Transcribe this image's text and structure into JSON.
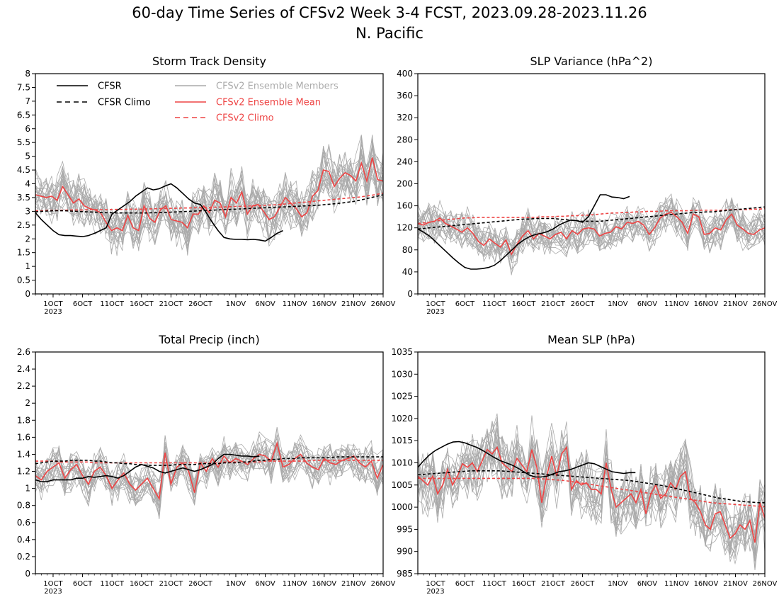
{
  "title_line1": "60-day Time Series of CFSv2 Week 3-4 FCST, 2023.09.28-2023.11.26",
  "title_line2": "N. Pacific",
  "colors": {
    "cfsr": "#000000",
    "members": "#aaaaaa",
    "ensemble_mean": "#ee4444"
  },
  "legend": [
    {
      "label": "CFSR",
      "color": "#000000",
      "style": "solid"
    },
    {
      "label": "CFSR Climo",
      "color": "#000000",
      "style": "dashed"
    },
    {
      "label": "CFSv2 Ensemble Members",
      "color": "#aaaaaa",
      "style": "solid"
    },
    {
      "label": "CFSv2 Ensemble Mean",
      "color": "#ee4444",
      "style": "solid"
    },
    {
      "label": "CFSv2 Climo",
      "color": "#ee4444",
      "style": "dashed"
    }
  ],
  "chart_data": [
    {
      "type": "line",
      "title": "Storm Track Density",
      "x_start": "2023-09-28",
      "x_end": "2023-11-26",
      "x_tick_labels": [
        "1OCT",
        "6OCT",
        "11OCT",
        "16OCT",
        "21OCT",
        "26OCT",
        "1NOV",
        "6NOV",
        "11NOV",
        "16NOV",
        "21NOV",
        "26NOV"
      ],
      "x_year_label": "2023",
      "ylim": [
        0,
        8
      ],
      "yticks": [
        "0",
        "0.5",
        "1",
        "1.5",
        "2",
        "2.5",
        "3",
        "3.5",
        "4",
        "4.5",
        "5",
        "5.5",
        "6",
        "6.5",
        "7",
        "7.5",
        "8"
      ],
      "cfsr": [
        2.95,
        2.7,
        2.5,
        2.3,
        2.15,
        2.12,
        2.12,
        2.1,
        2.08,
        2.12,
        2.2,
        2.3,
        2.4,
        2.9,
        3.05,
        3.2,
        3.35,
        3.55,
        3.7,
        3.85,
        3.78,
        3.82,
        3.92,
        4.0,
        3.85,
        3.65,
        3.45,
        3.3,
        3.25,
        2.95,
        2.6,
        2.3,
        2.05,
        2.0,
        1.98,
        1.98,
        1.97,
        1.98,
        1.96,
        1.92,
        2.05,
        2.2,
        2.3
      ],
      "cfsr_climo": [
        2.98,
        3.0,
        3.01,
        3.02,
        3.02,
        3.02,
        3.01,
        3.0,
        2.99,
        2.98,
        2.97,
        2.96,
        2.95,
        2.95,
        2.94,
        2.94,
        2.94,
        2.94,
        2.94,
        2.94,
        2.95,
        2.95,
        2.96,
        2.97,
        2.98,
        2.99,
        3.0,
        3.01,
        3.02,
        3.03,
        3.04,
        3.05,
        3.06,
        3.07,
        3.08,
        3.09,
        3.1,
        3.11,
        3.12,
        3.13,
        3.14,
        3.15,
        3.16,
        3.17,
        3.18,
        3.19,
        3.2,
        3.21,
        3.22,
        3.24,
        3.26,
        3.28,
        3.3,
        3.33,
        3.36,
        3.4,
        3.45,
        3.5,
        3.55,
        3.6
      ],
      "ens_mean": [
        3.6,
        3.55,
        3.5,
        3.55,
        3.4,
        3.9,
        3.6,
        3.3,
        3.45,
        3.2,
        3.1,
        3.05,
        2.95,
        2.6,
        2.3,
        2.4,
        2.3,
        2.85,
        2.4,
        2.3,
        3.2,
        2.75,
        2.6,
        3.05,
        3.2,
        2.7,
        2.65,
        2.6,
        2.4,
        2.9,
        2.9,
        3.2,
        2.95,
        3.4,
        3.3,
        2.8,
        3.5,
        3.3,
        3.7,
        2.9,
        3.2,
        3.25,
        3.0,
        2.7,
        2.8,
        3.15,
        3.5,
        3.3,
        3.1,
        2.8,
        2.95,
        3.55,
        3.75,
        4.5,
        4.45,
        3.9,
        4.2,
        4.4,
        4.3,
        4.1,
        4.75,
        4.1,
        4.95,
        4.15,
        4.1
      ],
      "cfsv2_climo": [
        3.02,
        3.02,
        3.03,
        3.03,
        3.04,
        3.04,
        3.05,
        3.05,
        3.05,
        3.06,
        3.06,
        3.06,
        3.06,
        3.07,
        3.07,
        3.07,
        3.08,
        3.08,
        3.08,
        3.09,
        3.09,
        3.1,
        3.1,
        3.11,
        3.11,
        3.12,
        3.12,
        3.13,
        3.13,
        3.14,
        3.15,
        3.15,
        3.16,
        3.17,
        3.18,
        3.18,
        3.19,
        3.2,
        3.21,
        3.22,
        3.23,
        3.24,
        3.26,
        3.28,
        3.3,
        3.32,
        3.34,
        3.36,
        3.38,
        3.4,
        3.42,
        3.44,
        3.46,
        3.48,
        3.5,
        3.52,
        3.55,
        3.58,
        3.62,
        3.66
      ],
      "members_base": 3.2,
      "members_spread": 0.8
    },
    {
      "type": "line",
      "title": "SLP Variance (hPa^2)",
      "x_start": "2023-09-28",
      "x_end": "2023-11-26",
      "x_tick_labels": [
        "1OCT",
        "6OCT",
        "11OCT",
        "16OCT",
        "21OCT",
        "26OCT",
        "1NOV",
        "6NOV",
        "11NOV",
        "16NOV",
        "21NOV",
        "26NOV"
      ],
      "x_year_label": "2023",
      "ylim": [
        0,
        400
      ],
      "yticks": [
        "0",
        "40",
        "80",
        "120",
        "160",
        "200",
        "240",
        "280",
        "320",
        "360",
        "400"
      ],
      "cfsr": [
        118,
        112,
        105,
        95,
        85,
        75,
        65,
        56,
        48,
        45,
        45,
        46,
        48,
        52,
        60,
        70,
        80,
        90,
        98,
        104,
        108,
        110,
        113,
        118,
        125,
        130,
        134,
        133,
        130,
        140,
        160,
        180,
        180,
        176,
        175,
        173,
        177
      ],
      "cfsr_climo": [
        118,
        119,
        120,
        121,
        122,
        123,
        124,
        125,
        126,
        127,
        128,
        129,
        130,
        131,
        132,
        133,
        134,
        135,
        136,
        136,
        137,
        137,
        137,
        137,
        136,
        135,
        134,
        133,
        132,
        132,
        132,
        132,
        133,
        134,
        135,
        136,
        137,
        138,
        139,
        140,
        141,
        142,
        143,
        144,
        145,
        146,
        147,
        148,
        148,
        149,
        149,
        150,
        151,
        152,
        153,
        154,
        155,
        156,
        157,
        158
      ],
      "ens_mean": [
        128,
        125,
        130,
        132,
        138,
        128,
        123,
        118,
        112,
        120,
        110,
        95,
        88,
        100,
        92,
        85,
        98,
        72,
        90,
        105,
        115,
        100,
        110,
        105,
        100,
        108,
        112,
        100,
        115,
        108,
        118,
        120,
        118,
        105,
        110,
        112,
        122,
        118,
        130,
        128,
        132,
        125,
        108,
        120,
        138,
        145,
        148,
        140,
        130,
        110,
        145,
        140,
        108,
        110,
        120,
        116,
        135,
        145,
        125,
        118,
        110,
        108,
        116,
        120
      ],
      "cfsv2_climo": [
        128,
        129,
        130,
        132,
        134,
        135,
        136,
        137,
        138,
        138,
        139,
        139,
        139,
        139,
        139,
        139,
        139,
        139,
        139,
        139,
        139,
        140,
        140,
        140,
        141,
        141,
        142,
        142,
        143,
        143,
        144,
        145,
        146,
        147,
        147,
        148,
        148,
        149,
        149,
        150,
        150,
        150,
        151,
        151,
        151,
        151,
        151,
        152,
        152,
        152,
        152,
        152,
        152,
        153,
        153,
        153,
        153,
        154,
        154,
        155
      ],
      "members_base": 128,
      "members_spread": 30
    },
    {
      "type": "line",
      "title": "Total Precip (inch)",
      "x_start": "2023-09-28",
      "x_end": "2023-11-26",
      "x_tick_labels": [
        "1OCT",
        "6OCT",
        "11OCT",
        "16OCT",
        "21OCT",
        "26OCT",
        "1NOV",
        "6NOV",
        "11NOV",
        "16NOV",
        "21NOV",
        "26NOV"
      ],
      "x_year_label": "2023",
      "ylim": [
        0,
        2.6
      ],
      "yticks": [
        "0",
        "0.2",
        "0.4",
        "0.6",
        "0.8",
        "1",
        "1.2",
        "1.4",
        "1.6",
        "1.8",
        "2",
        "2.2",
        "2.4",
        "2.6"
      ],
      "cfsr": [
        1.1,
        1.08,
        1.08,
        1.1,
        1.1,
        1.1,
        1.1,
        1.12,
        1.12,
        1.14,
        1.13,
        1.14,
        1.15,
        1.14,
        1.12,
        1.15,
        1.2,
        1.25,
        1.28,
        1.26,
        1.24,
        1.2,
        1.18,
        1.2,
        1.22,
        1.24,
        1.22,
        1.2,
        1.22,
        1.25,
        1.28,
        1.35,
        1.4,
        1.4,
        1.39,
        1.38,
        1.38,
        1.37,
        1.38
      ],
      "cfsr_climo": [
        1.29,
        1.3,
        1.31,
        1.32,
        1.32,
        1.32,
        1.33,
        1.33,
        1.33,
        1.33,
        1.32,
        1.32,
        1.31,
        1.3,
        1.3,
        1.29,
        1.29,
        1.28,
        1.28,
        1.27,
        1.27,
        1.27,
        1.27,
        1.27,
        1.28,
        1.28,
        1.28,
        1.28,
        1.29,
        1.29,
        1.29,
        1.29,
        1.3,
        1.3,
        1.3,
        1.31,
        1.31,
        1.32,
        1.33,
        1.33,
        1.34,
        1.34,
        1.35,
        1.35,
        1.35,
        1.36,
        1.36,
        1.36,
        1.36,
        1.36,
        1.36,
        1.37,
        1.37,
        1.37,
        1.37,
        1.37,
        1.37,
        1.37,
        1.37,
        1.37
      ],
      "ens_mean": [
        1.15,
        1.1,
        1.2,
        1.25,
        1.3,
        1.12,
        1.22,
        1.28,
        1.15,
        1.05,
        1.2,
        1.25,
        1.15,
        1.0,
        1.1,
        1.18,
        1.05,
        0.98,
        1.05,
        1.12,
        1.0,
        0.88,
        1.42,
        1.05,
        1.25,
        1.3,
        1.2,
        0.95,
        1.3,
        1.2,
        1.35,
        1.25,
        1.38,
        1.3,
        1.35,
        1.32,
        1.28,
        1.35,
        1.4,
        1.38,
        1.32,
        1.53,
        1.25,
        1.28,
        1.35,
        1.4,
        1.3,
        1.25,
        1.22,
        1.35,
        1.3,
        1.28,
        1.33,
        1.35,
        1.38,
        1.3,
        1.25,
        1.32,
        1.12,
        1.28
      ],
      "cfsv2_climo": [
        1.32,
        1.32,
        1.32,
        1.32,
        1.31,
        1.31,
        1.31,
        1.31,
        1.31,
        1.31,
        1.3,
        1.3,
        1.3,
        1.3,
        1.3,
        1.3,
        1.3,
        1.3,
        1.3,
        1.3,
        1.3,
        1.3,
        1.3,
        1.3,
        1.3,
        1.3,
        1.3,
        1.3,
        1.3,
        1.3,
        1.3,
        1.3,
        1.31,
        1.31,
        1.31,
        1.31,
        1.31,
        1.31,
        1.31,
        1.32,
        1.32,
        1.32,
        1.32,
        1.32,
        1.32,
        1.32,
        1.32,
        1.33,
        1.33,
        1.33,
        1.33,
        1.33,
        1.33,
        1.33,
        1.33,
        1.33,
        1.33,
        1.33,
        1.33,
        1.33
      ],
      "members_base": 1.25,
      "members_spread": 0.2
    },
    {
      "type": "line",
      "title": "Mean SLP (hPa)",
      "x_start": "2023-09-28",
      "x_end": "2023-11-26",
      "x_tick_labels": [
        "1OCT",
        "6OCT",
        "11OCT",
        "16OCT",
        "21OCT",
        "26OCT",
        "1NOV",
        "6NOV",
        "11NOV",
        "16NOV",
        "21NOV",
        "26NOV"
      ],
      "x_year_label": "2023",
      "ylim": [
        985,
        1035
      ],
      "yticks": [
        "985",
        "990",
        "995",
        "1000",
        "1005",
        "1010",
        "1015",
        "1020",
        "1025",
        "1030",
        "1035"
      ],
      "cfsr": [
        1009,
        1010.5,
        1011.8,
        1012.8,
        1013.5,
        1014.2,
        1014.7,
        1014.8,
        1014.5,
        1014,
        1013.5,
        1012.8,
        1012,
        1011.2,
        1010.5,
        1010,
        1009.5,
        1008.8,
        1008,
        1007.2,
        1006.8,
        1006.8,
        1007,
        1007.5,
        1008,
        1008.2,
        1008.5,
        1009,
        1009.5,
        1010,
        1009.8,
        1009.2,
        1008.6,
        1008,
        1007.8,
        1007.6,
        1007.8,
        1007.8
      ],
      "cfsr_climo": [
        1007.3,
        1007.4,
        1007.5,
        1007.6,
        1007.7,
        1007.8,
        1007.9,
        1008,
        1008.1,
        1008.2,
        1008.2,
        1008.2,
        1008.2,
        1008.2,
        1008.2,
        1008.1,
        1008,
        1007.9,
        1007.8,
        1007.7,
        1007.6,
        1007.5,
        1007.4,
        1007.3,
        1007.2,
        1007.1,
        1007,
        1006.9,
        1006.8,
        1006.7,
        1006.6,
        1006.5,
        1006.4,
        1006.3,
        1006.2,
        1006.1,
        1006,
        1005.8,
        1005.6,
        1005.4,
        1005.2,
        1005,
        1004.8,
        1004.5,
        1004.2,
        1003.9,
        1003.6,
        1003.3,
        1003,
        1002.7,
        1002.4,
        1002.1,
        1001.9,
        1001.7,
        1001.5,
        1001.3,
        1001.2,
        1001.1,
        1001,
        1001
      ],
      "ens_mean": [
        1007,
        1006,
        1005,
        1007,
        1003,
        1005,
        1008.5,
        1005,
        1007,
        1009.8,
        1009,
        1010,
        1008,
        1010.5,
        1013,
        1012,
        1013.5,
        1010,
        1009,
        1008,
        1011,
        1009.5,
        1008,
        1013,
        1009,
        1001,
        1007,
        1011.5,
        1007,
        1012,
        1013.5,
        1004,
        1006,
        1005,
        1005.5,
        1004,
        1004,
        1003,
        1010,
        1004,
        1000,
        1001,
        1002,
        1003,
        1001,
        1004,
        998.5,
        1003,
        1005,
        1002,
        1003,
        1005.5,
        1004,
        1007,
        1008,
        1002,
        1001,
        999,
        996,
        995,
        998.5,
        999,
        996,
        993,
        994,
        996,
        995,
        997,
        992,
        1001,
        997.5
      ],
      "cfsv2_climo": [
        1006.5,
        1006.5,
        1006.5,
        1006.5,
        1006.5,
        1006.5,
        1006.5,
        1006.5,
        1006.5,
        1006.5,
        1006.5,
        1006.5,
        1006.5,
        1006.5,
        1006.5,
        1006.5,
        1006.5,
        1006.5,
        1006.5,
        1006.5,
        1006.5,
        1006.4,
        1006.3,
        1006.2,
        1006.1,
        1006,
        1005.8,
        1005.6,
        1005.4,
        1005.2,
        1005,
        1004.8,
        1004.6,
        1004.4,
        1004.2,
        1004,
        1003.8,
        1003.6,
        1003.4,
        1003.2,
        1003,
        1002.8,
        1002.6,
        1002.4,
        1002.2,
        1002,
        1001.8,
        1001.6,
        1001.4,
        1001.2,
        1001,
        1000.9,
        1000.8,
        1000.7,
        1000.6,
        1000.5,
        1000.4,
        1000.3,
        1000.2,
        1000.1
      ],
      "members_base": 1005,
      "members_spread": 6
    }
  ]
}
